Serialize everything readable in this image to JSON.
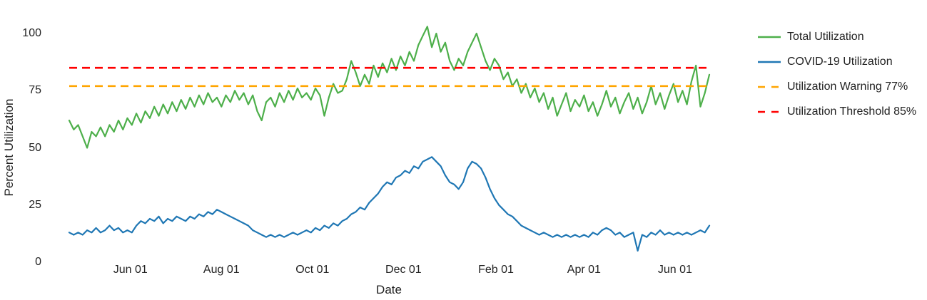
{
  "chart": {
    "y_axis_title": "Percent Utilization",
    "x_axis_title": "Date"
  },
  "legend": {
    "items": [
      {
        "id": "total-utilization",
        "label": "Total Utilization",
        "color": "#4daf4a",
        "dash": "solid"
      },
      {
        "id": "covid-utilization",
        "label": "COVID-19 Utilization",
        "color": "#1f77b4",
        "dash": "solid"
      },
      {
        "id": "utilization-warning",
        "label": "Utilization Warning 77%",
        "color": "#FFA500",
        "dash": "dashed"
      },
      {
        "id": "utilization-threshold",
        "label": "Utilization Threshold 85%",
        "color": "#FF0000",
        "dash": "dashed"
      }
    ]
  },
  "chart_data": {
    "type": "line",
    "title": "",
    "xlabel": "Date",
    "ylabel": "Percent Utilization",
    "grid": false,
    "legend_position": "right",
    "x_tick_labels": [
      "Jun 01",
      "Aug 01",
      "Oct 01",
      "Dec 01",
      "Feb 01",
      "Apr 01",
      "Jun 01"
    ],
    "x_tick_days": [
      41,
      102,
      163,
      224,
      286,
      345,
      406
    ],
    "x_domain_days": [
      0,
      429
    ],
    "y_ticks": [
      0,
      25,
      50,
      75,
      100
    ],
    "ylim": [
      0,
      107
    ],
    "x_step_days": 3,
    "series": [
      {
        "id": "total-utilization",
        "name": "Total Utilization",
        "color": "#4daf4a",
        "style": "solid",
        "step_days": 3,
        "values": [
          62,
          58,
          60,
          55,
          50,
          57,
          55,
          59,
          55,
          60,
          57,
          62,
          58,
          63,
          60,
          65,
          61,
          66,
          63,
          68,
          64,
          69,
          65,
          70,
          66,
          71,
          67,
          72,
          68,
          73,
          69,
          74,
          70,
          72,
          68,
          73,
          70,
          75,
          71,
          74,
          69,
          73,
          66,
          62,
          70,
          72,
          68,
          74,
          70,
          75,
          71,
          76,
          72,
          74,
          71,
          76,
          73,
          64,
          72,
          78,
          74,
          75,
          80,
          88,
          83,
          77,
          82,
          78,
          86,
          81,
          87,
          83,
          89,
          84,
          90,
          86,
          92,
          88,
          95,
          99,
          103,
          94,
          100,
          92,
          96,
          88,
          84,
          89,
          86,
          92,
          96,
          100,
          94,
          88,
          84,
          89,
          86,
          80,
          83,
          77,
          80,
          74,
          78,
          72,
          76,
          70,
          74,
          67,
          72,
          64,
          69,
          74,
          66,
          71,
          68,
          73,
          66,
          70,
          64,
          69,
          75,
          68,
          72,
          65,
          70,
          74,
          67,
          72,
          65,
          70,
          77,
          69,
          74,
          67,
          73,
          78,
          70,
          75,
          69,
          79,
          86,
          68,
          74,
          82
        ]
      },
      {
        "id": "covid-utilization",
        "name": "COVID-19 Utilization",
        "color": "#1f77b4",
        "style": "solid",
        "step_days": 3,
        "values": [
          13,
          12,
          13,
          12,
          14,
          13,
          15,
          13,
          14,
          16,
          14,
          15,
          13,
          14,
          13,
          16,
          18,
          17,
          19,
          18,
          20,
          17,
          19,
          18,
          20,
          19,
          18,
          20,
          19,
          21,
          20,
          22,
          21,
          23,
          22,
          21,
          20,
          19,
          18,
          17,
          16,
          14,
          13,
          12,
          11,
          12,
          11,
          12,
          11,
          12,
          13,
          12,
          13,
          14,
          13,
          15,
          14,
          16,
          15,
          17,
          16,
          18,
          19,
          21,
          22,
          24,
          23,
          26,
          28,
          30,
          33,
          35,
          34,
          37,
          38,
          40,
          39,
          42,
          41,
          44,
          45,
          46,
          44,
          42,
          38,
          35,
          34,
          32,
          35,
          41,
          44,
          43,
          41,
          37,
          32,
          28,
          25,
          23,
          21,
          20,
          18,
          16,
          15,
          14,
          13,
          12,
          13,
          12,
          11,
          12,
          11,
          12,
          11,
          12,
          11,
          12,
          11,
          13,
          12,
          14,
          15,
          14,
          12,
          13,
          11,
          12,
          13,
          5,
          12,
          11,
          13,
          12,
          14,
          12,
          13,
          12,
          13,
          12,
          13,
          12,
          13,
          14,
          13,
          16
        ]
      },
      {
        "id": "utilization-warning",
        "name": "Utilization Warning 77%",
        "color": "#FFA500",
        "style": "dashed",
        "constant": 77
      },
      {
        "id": "utilization-threshold",
        "name": "Utilization Threshold 85%",
        "color": "#FF0000",
        "style": "dashed",
        "constant": 85
      }
    ]
  }
}
